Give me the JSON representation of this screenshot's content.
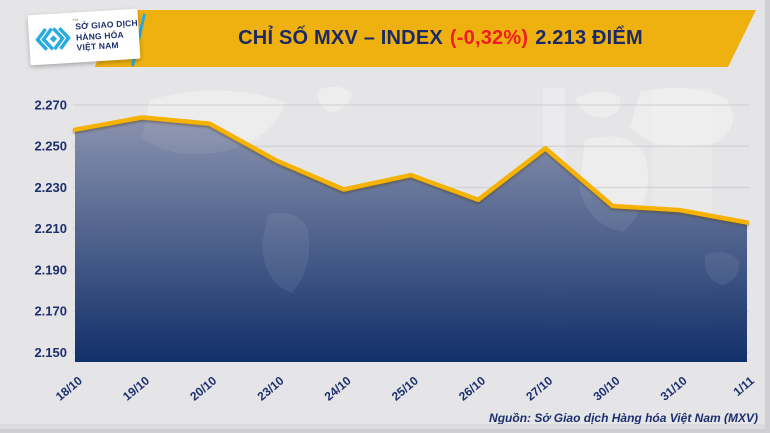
{
  "header": {
    "logo": {
      "line1": "SỞ GIAO DỊCH",
      "line2": "HÀNG HÓA",
      "line3": "VIỆT NAM",
      "trademark": "™"
    },
    "title": {
      "main": "CHỈ SỐ MXV – INDEX",
      "change": "(-0,32%)",
      "points": "2.213 ĐIỂM"
    }
  },
  "chart_data": {
    "type": "area",
    "title": "CHỈ SỐ MXV – INDEX (-0,32%) 2.213 ĐIỂM",
    "categories": [
      "18/10",
      "19/10",
      "20/10",
      "23/10",
      "24/10",
      "25/10",
      "26/10",
      "27/10",
      "30/10",
      "31/10",
      "1/11"
    ],
    "values": [
      2258,
      2264,
      2261,
      2243,
      2229,
      2236,
      2224,
      2249,
      2221,
      2219,
      2213
    ],
    "y_ticks": [
      {
        "label": "2.270",
        "value": 2270
      },
      {
        "label": "2.250",
        "value": 2250
      },
      {
        "label": "2.230",
        "value": 2230
      },
      {
        "label": "2.210",
        "value": 2210
      },
      {
        "label": "2.190",
        "value": 2190
      },
      {
        "label": "2.170",
        "value": 2170
      },
      {
        "label": "2.150",
        "value": 2150
      }
    ],
    "ylim": [
      2150,
      2270
    ],
    "xlabel": "",
    "ylabel": "",
    "grid": true,
    "legend": false,
    "line_color": "#f6b200",
    "area_gradient_top": "#8790ad",
    "area_gradient_bottom": "#0b2a66",
    "axis_label_color": "#1c2f6e",
    "grid_color": "#d2d2d6"
  },
  "footer": {
    "source": "Nguồn: Sở Giao dịch Hàng hóa Việt Nam (MXV)"
  },
  "colors": {
    "banner": "#efb110",
    "title_navy": "#1b2a66",
    "title_red": "#ee1c24",
    "background": "#e5e5e7",
    "logo_cyan": "#29abe2"
  }
}
